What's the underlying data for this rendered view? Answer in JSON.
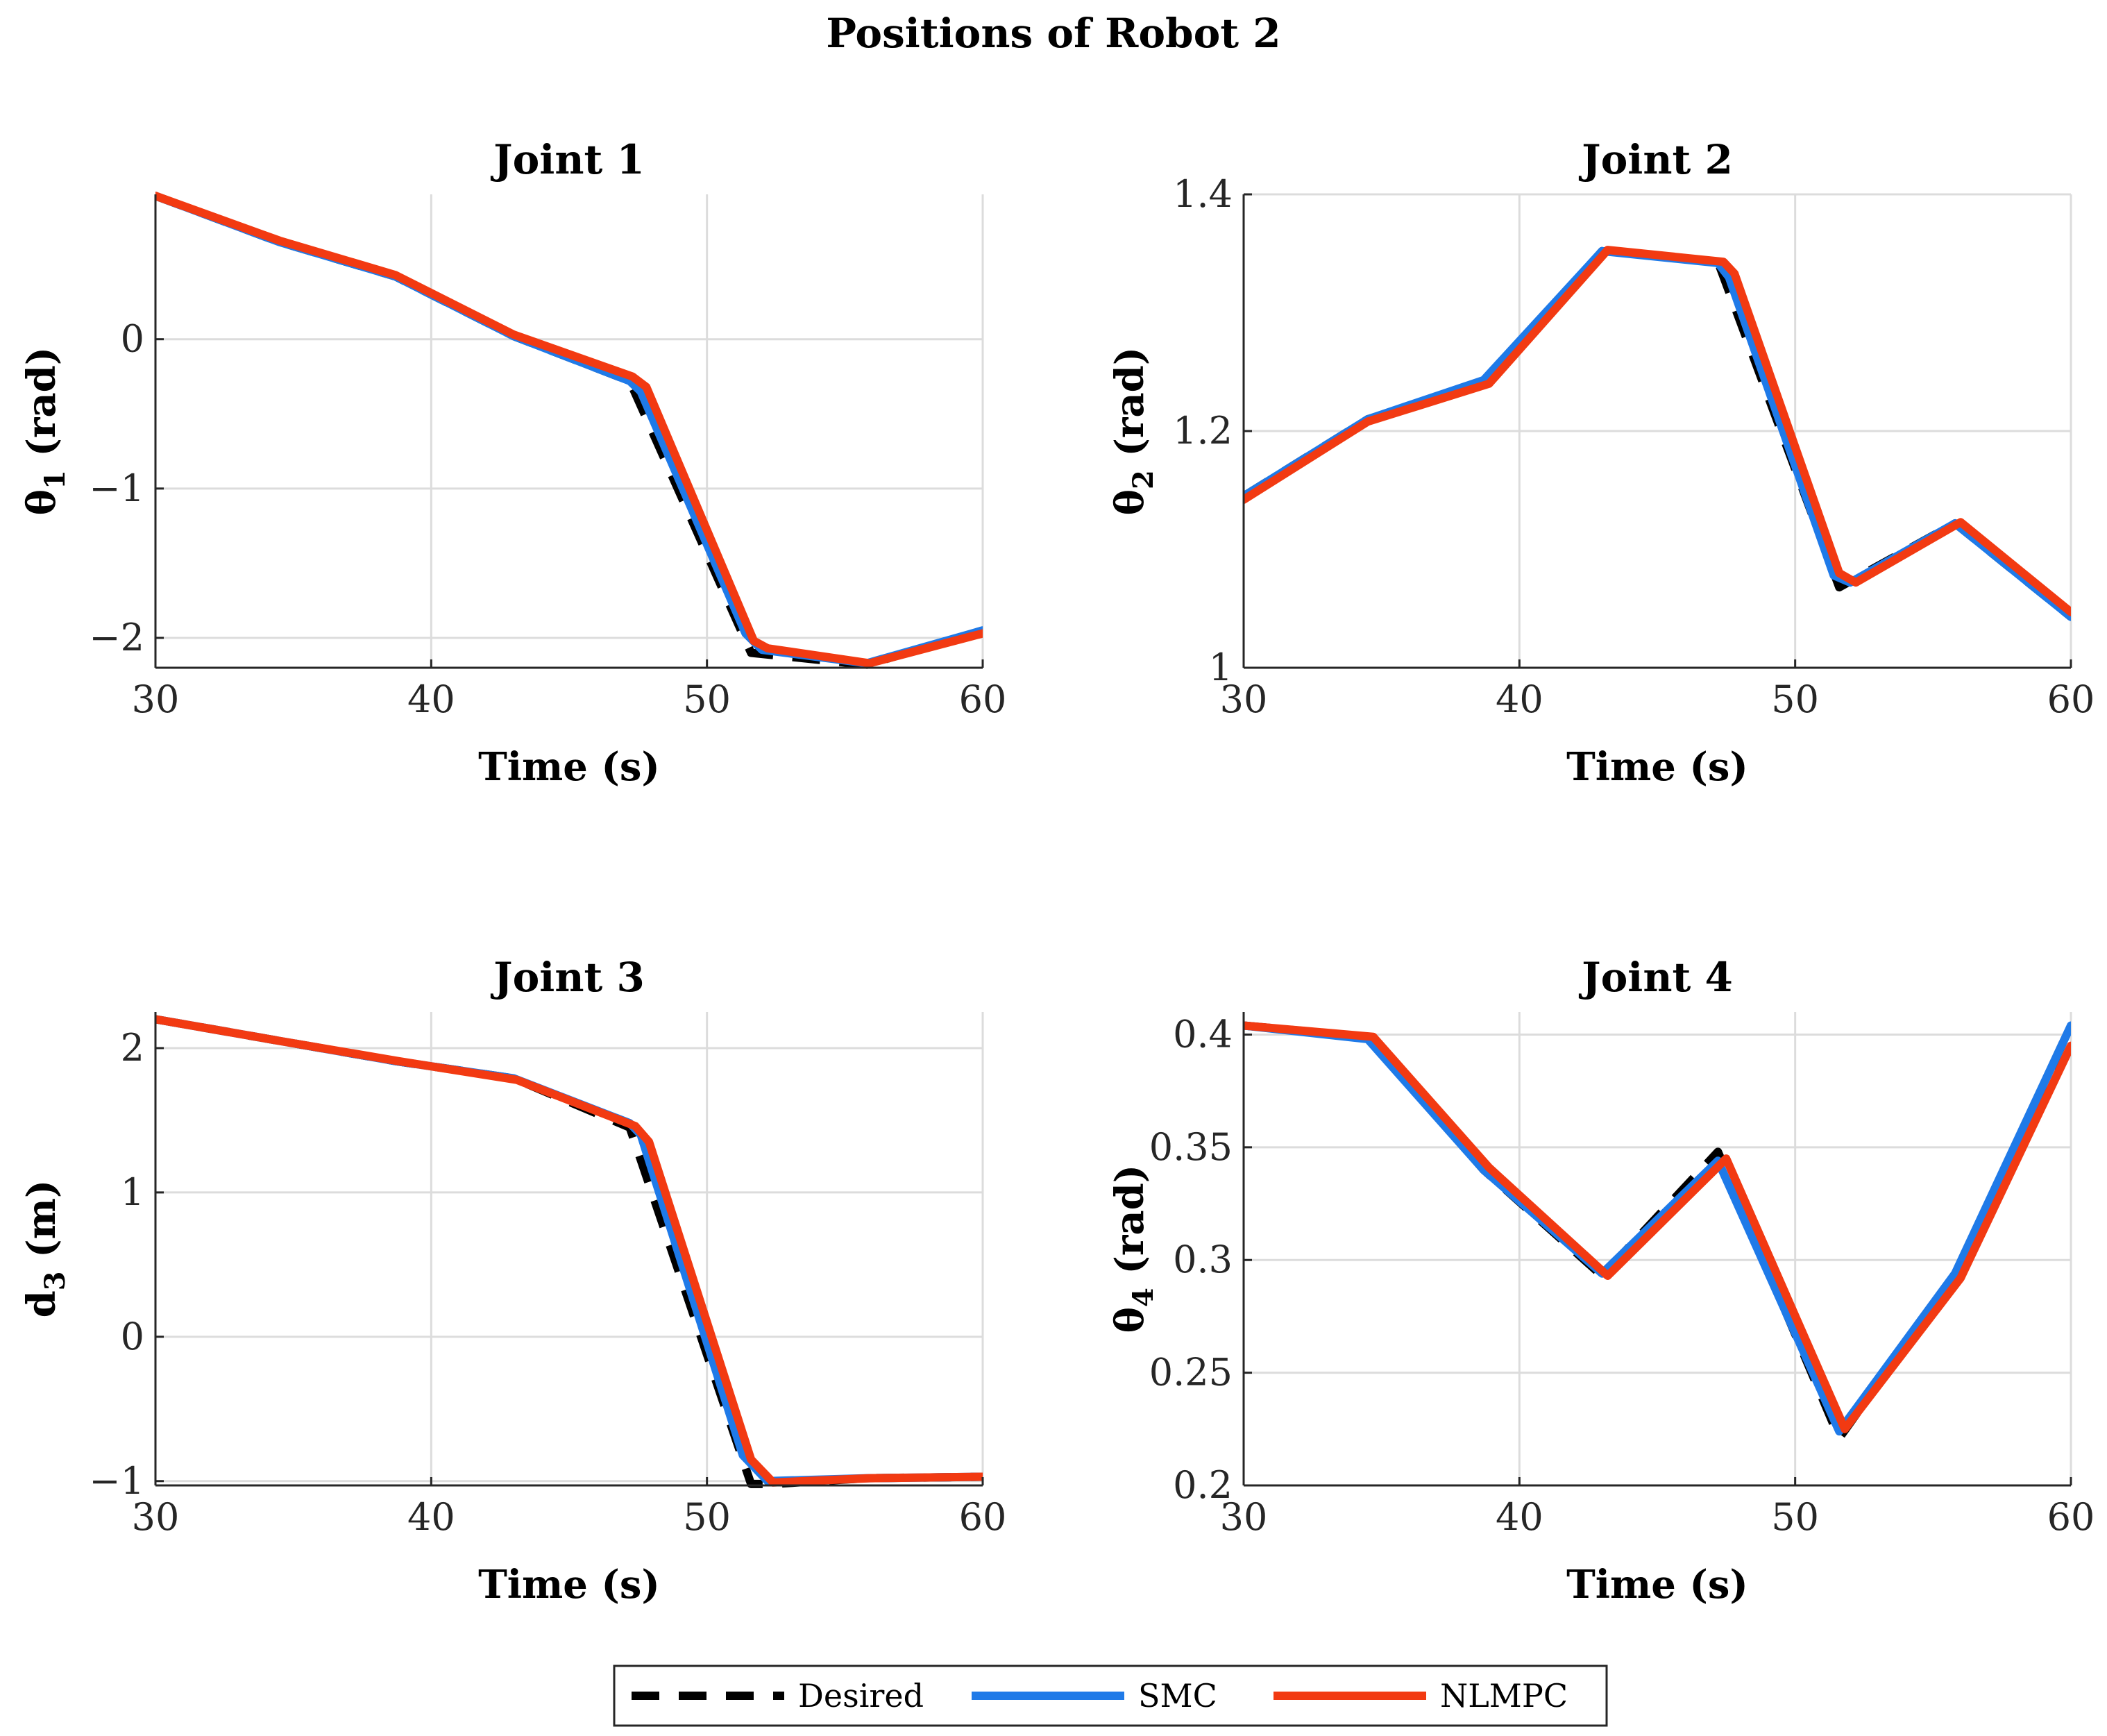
{
  "chart_data": {
    "title": "Positions of Robot 2",
    "legend": {
      "placement": "bottom-center",
      "entries": [
        {
          "name": "Desired",
          "color": "#000000",
          "style": "dashed"
        },
        {
          "name": "SMC",
          "color": "#1f7ae8",
          "style": "solid"
        },
        {
          "name": "NLMPC",
          "color": "#f23a12",
          "style": "solid"
        }
      ]
    },
    "subplots": [
      {
        "type": "line",
        "title": "Joint 1",
        "xlabel": "Time (s)",
        "ylabel_main": "θ",
        "ylabel_sub": "1",
        "ylabel_unit": " (rad)",
        "xlim": [
          30,
          60
        ],
        "ylim": [
          -2.2,
          0.97
        ],
        "xticks": [
          30,
          40,
          50,
          60
        ],
        "yticks": [
          -2,
          -1,
          0
        ],
        "ytick_labels": [
          "−2",
          "−1",
          "0"
        ],
        "grid": true,
        "series": [
          {
            "name": "Desired",
            "x": [
              30,
              34.5,
              38.7,
              43,
              47.2,
              51.6,
              55.8,
              60
            ],
            "y": [
              0.96,
              0.65,
              0.42,
              0.02,
              -0.28,
              -2.1,
              -2.18,
              -1.95
            ]
          },
          {
            "name": "SMC",
            "x": [
              30,
              34.5,
              38.7,
              43,
              47.2,
              47.6,
              51.4,
              52,
              55.8,
              60
            ],
            "y": [
              0.96,
              0.65,
              0.42,
              0.02,
              -0.28,
              -0.35,
              -1.97,
              -2.08,
              -2.17,
              -1.95
            ]
          },
          {
            "name": "NLMPC",
            "x": [
              30,
              34.5,
              38.7,
              43,
              47.3,
              47.8,
              51.7,
              52.2,
              55.9,
              60
            ],
            "y": [
              0.96,
              0.66,
              0.43,
              0.03,
              -0.25,
              -0.32,
              -2.02,
              -2.07,
              -2.17,
              -1.97
            ]
          }
        ]
      },
      {
        "type": "line",
        "title": "Joint 2",
        "xlabel": "Time (s)",
        "ylabel_main": "θ",
        "ylabel_sub": "2",
        "ylabel_unit": " (rad)",
        "xlim": [
          30,
          60
        ],
        "ylim": [
          1.0,
          1.4
        ],
        "xticks": [
          30,
          40,
          50,
          60
        ],
        "yticks": [
          1,
          1.2,
          1.4
        ],
        "ytick_labels": [
          "1",
          "1.2",
          "1.4"
        ],
        "grid": true,
        "series": [
          {
            "name": "Desired",
            "x": [
              30,
              34.5,
              38.7,
              43,
              47.2,
              51.6,
              55.8,
              60
            ],
            "y": [
              1.145,
              1.21,
              1.24,
              1.352,
              1.343,
              1.068,
              1.122,
              1.043
            ]
          },
          {
            "name": "SMC",
            "x": [
              30,
              34.5,
              38.7,
              43,
              47.2,
              47.6,
              51.4,
              52,
              55.8,
              60
            ],
            "y": [
              1.145,
              1.21,
              1.243,
              1.352,
              1.342,
              1.33,
              1.078,
              1.072,
              1.122,
              1.043
            ]
          },
          {
            "name": "NLMPC",
            "x": [
              30,
              34.5,
              38.9,
              43.2,
              47.4,
              47.8,
              51.6,
              52.2,
              56.0,
              60
            ],
            "y": [
              1.142,
              1.208,
              1.24,
              1.353,
              1.343,
              1.333,
              1.08,
              1.072,
              1.123,
              1.047
            ]
          }
        ]
      },
      {
        "type": "line",
        "title": "Joint 3",
        "xlabel": "Time (s)",
        "ylabel_main": "d",
        "ylabel_sub": "3",
        "ylabel_unit": " (m)",
        "xlim": [
          30,
          60
        ],
        "ylim": [
          -1.03,
          2.25
        ],
        "xticks": [
          30,
          40,
          50,
          60
        ],
        "yticks": [
          -1,
          0,
          1,
          2
        ],
        "ytick_labels": [
          "−1",
          "0",
          "1",
          "2"
        ],
        "grid": true,
        "series": [
          {
            "name": "Desired",
            "x": [
              30,
              34.5,
              38.7,
              43,
              47.2,
              51.6,
              52.4,
              55.8,
              60
            ],
            "y": [
              2.2,
              2.05,
              1.91,
              1.79,
              1.45,
              -1.02,
              -1.02,
              -0.98,
              -0.97
            ]
          },
          {
            "name": "SMC",
            "x": [
              30,
              34.5,
              38.7,
              43,
              47.2,
              47.6,
              51.3,
              52.2,
              55.8,
              60
            ],
            "y": [
              2.2,
              2.05,
              1.91,
              1.79,
              1.48,
              1.4,
              -0.82,
              -1.0,
              -0.98,
              -0.97
            ]
          },
          {
            "name": "NLMPC",
            "x": [
              30,
              34.5,
              38.8,
              43.1,
              47.4,
              47.9,
              51.6,
              52.4,
              55.9,
              60
            ],
            "y": [
              2.2,
              2.05,
              1.91,
              1.78,
              1.46,
              1.35,
              -0.85,
              -1.01,
              -0.98,
              -0.97
            ]
          }
        ]
      },
      {
        "type": "line",
        "title": "Joint 4",
        "xlabel": "Time (s)",
        "ylabel_main": "θ",
        "ylabel_sub": "4",
        "ylabel_unit": " (rad)",
        "xlim": [
          30,
          60
        ],
        "ylim": [
          0.2,
          0.41
        ],
        "xticks": [
          30,
          40,
          50,
          60
        ],
        "yticks": [
          0.2,
          0.25,
          0.3,
          0.35,
          0.4
        ],
        "ytick_labels": [
          "0.2",
          "0.25",
          "0.3",
          "0.35",
          "0.4"
        ],
        "grid": true,
        "series": [
          {
            "name": "Desired",
            "x": [
              30,
              34.5,
              38.7,
              43,
              47.2,
              51.6,
              55.8,
              60
            ],
            "y": [
              0.404,
              0.399,
              0.34,
              0.293,
              0.348,
              0.221,
              0.293,
              0.404
            ]
          },
          {
            "name": "SMC",
            "x": [
              30,
              34.5,
              38.7,
              43,
              47.2,
              51.6,
              55.8,
              60
            ],
            "y": [
              0.404,
              0.398,
              0.34,
              0.294,
              0.344,
              0.224,
              0.294,
              0.404
            ]
          },
          {
            "name": "NLMPC",
            "x": [
              30,
              34.7,
              38.9,
              43.2,
              47.5,
              51.8,
              56.0,
              60
            ],
            "y": [
              0.404,
              0.399,
              0.341,
              0.293,
              0.345,
              0.225,
              0.292,
              0.395
            ]
          }
        ]
      }
    ]
  }
}
